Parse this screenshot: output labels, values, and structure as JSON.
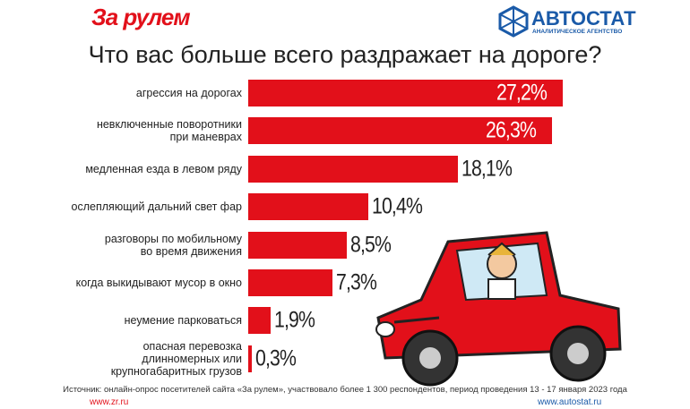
{
  "header": {
    "logo_left": "За рулем",
    "logo_right": "АВТОСТАТ",
    "logo_right_sub": "АНАЛИТИЧЕСКОЕ АГЕНТСТВО"
  },
  "chart_data": {
    "type": "bar",
    "orientation": "horizontal",
    "title": "Что вас больше всего раздражает на дороге?",
    "categories": [
      "агрессия на дорогах",
      "невключенные поворотники\nпри маневрах",
      "медленная езда в левом ряду",
      "ослепляющий дальний свет фар",
      "разговоры по мобильному\nво время движения",
      "когда выкидывают мусор в окно",
      "неумение парковаться",
      "опасная перевозка\nдлинномерных или\nкрупногабаритных грузов"
    ],
    "values": [
      27.2,
      26.3,
      18.1,
      10.4,
      8.5,
      7.3,
      1.9,
      0.3
    ],
    "value_labels": [
      "27,2%",
      "26,3%",
      "18,1%",
      "10,4%",
      "8,5%",
      "7,3%",
      "1,9%",
      "0,3%"
    ],
    "color": "#e2101a"
  },
  "footer": {
    "source": "Источник: онлайн-опрос посетителей сайта «За рулем», участвовало более 1 300 респондентов, период проведения 13 - 17 января 2023 года",
    "left_url": "www.zr.ru",
    "right_url": "www.autostat.ru"
  }
}
